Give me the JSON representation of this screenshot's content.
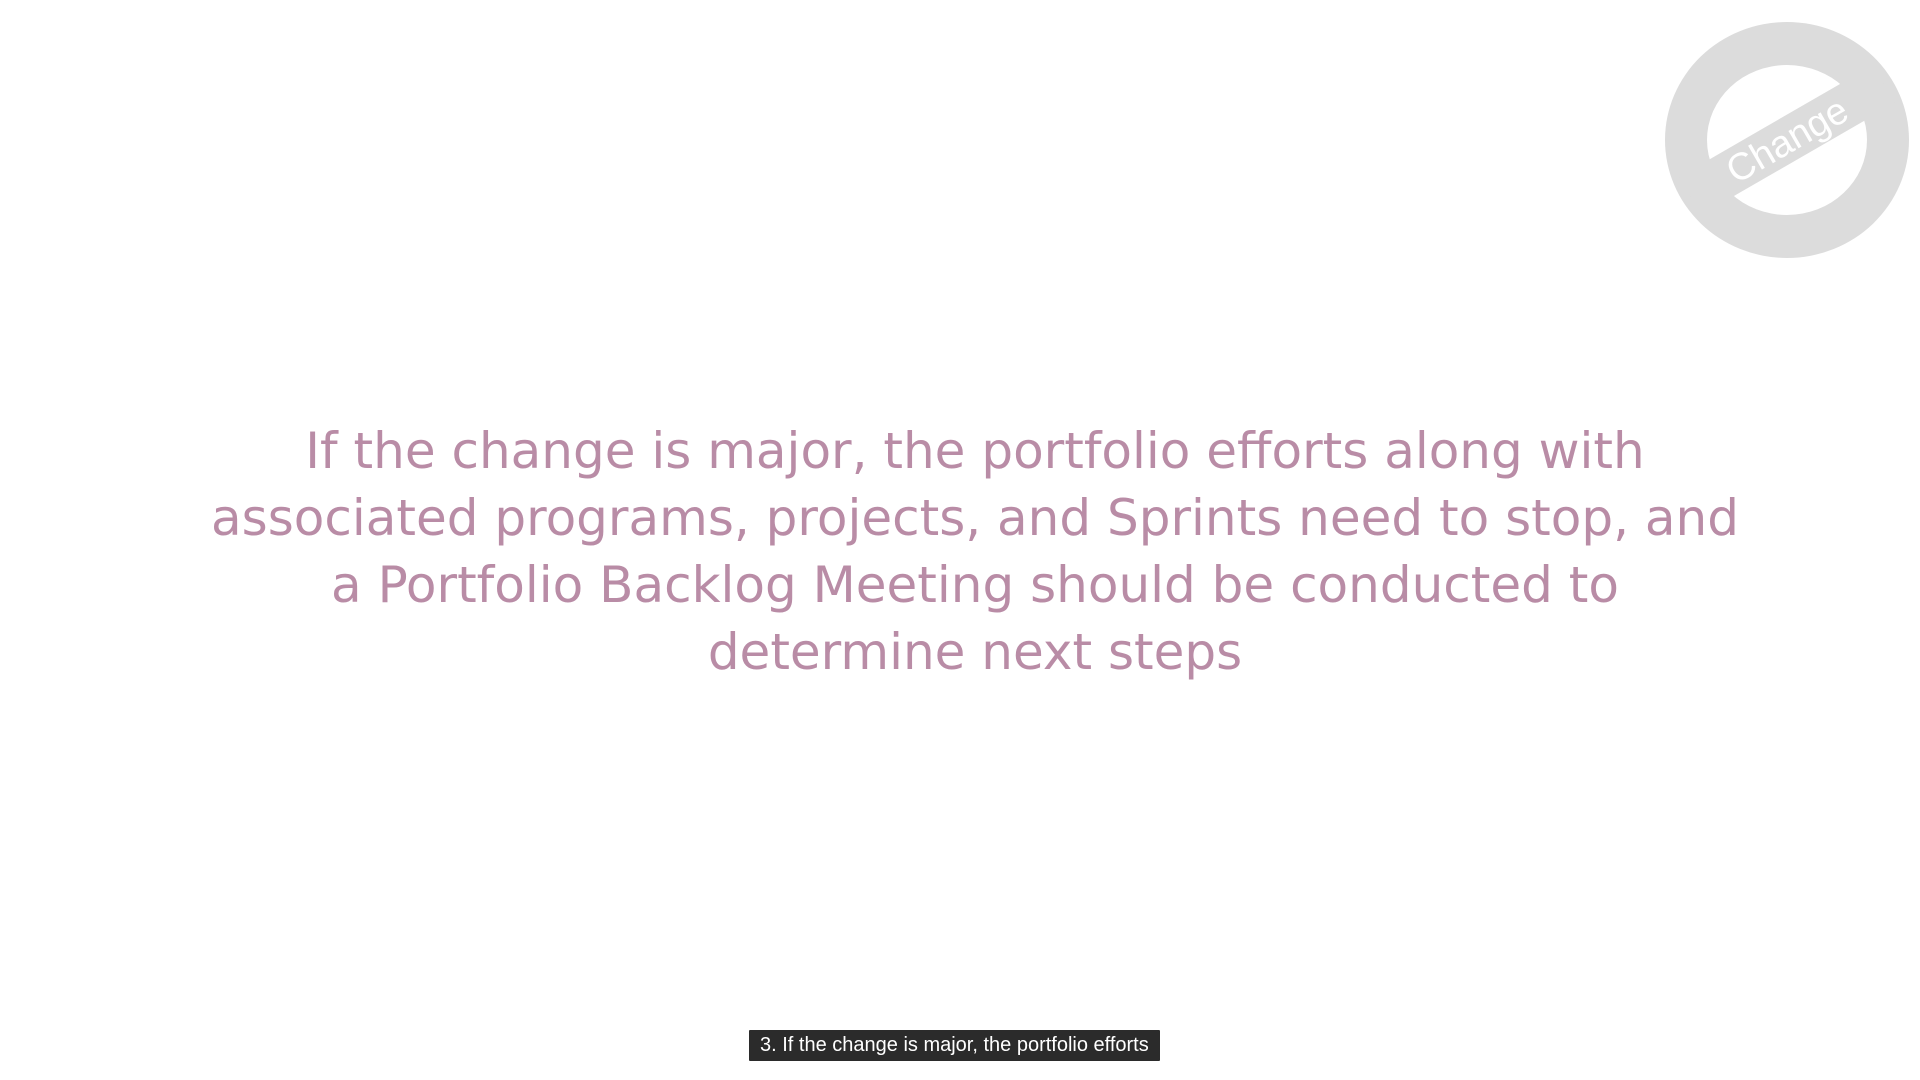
{
  "slide": {
    "text": "If the change is major, the portfolio efforts along with associated programs, projects, and Sprints need to stop, and a Portfolio Backlog Meeting should be conducted to determine next steps",
    "text_color": "#b98ca6"
  },
  "badge": {
    "label": "Change",
    "ring_color": "#dcdcdc"
  },
  "caption": {
    "text": "3. If the change is major, the portfolio efforts"
  }
}
